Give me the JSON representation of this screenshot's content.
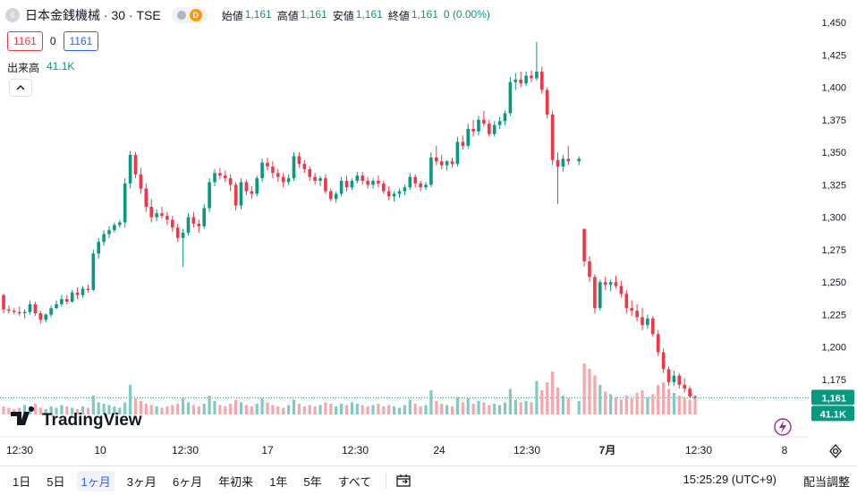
{
  "header": {
    "symbol_icon": "6",
    "symbol_title": "日本金銭機械 · 30 · TSE",
    "data_badge": "D",
    "open_label": "始値",
    "open_value": "1,161",
    "high_label": "高値",
    "high_value": "1,161",
    "low_label": "安値",
    "low_value": "1,161",
    "close_label": "終値",
    "close_value": "1,161",
    "change": "0 (0.00%)"
  },
  "quote": {
    "bid": "1161",
    "spread": "0",
    "ask": "1161"
  },
  "volume_legend": {
    "label": "出来高",
    "value": "41.1K"
  },
  "price_axis": {
    "ticks": [
      "1,450",
      "1,425",
      "1,400",
      "1,375",
      "1,350",
      "1,325",
      "1,300",
      "1,275",
      "1,250",
      "1,225",
      "1,200",
      "1,175"
    ],
    "last_price_label": "1,161",
    "last_volume_label": "41.1K"
  },
  "time_axis": {
    "ticks": [
      "12:30",
      "10",
      "12:30",
      "17",
      "12:30",
      "24",
      "12:30",
      "7月",
      "12:30",
      "8"
    ]
  },
  "logo": {
    "text": "TradingView"
  },
  "bottom_bar": {
    "ranges": [
      "1日",
      "5日",
      "1ヶ月",
      "3ヶ月",
      "6ヶ月",
      "年初来",
      "1年",
      "5年",
      "すべて"
    ],
    "active_range": "1ヶ月",
    "clock": "15:25:29 (UTC+9)",
    "adjust_label": "配当調整"
  },
  "colors": {
    "up": "#089981",
    "down": "#f23645",
    "vol_up": "#7fcbc1",
    "vol_down": "#f7a6ab",
    "accent": "#2962ff"
  },
  "chart_data": {
    "type": "candlestick",
    "title": "日本金銭機械 · 30 · TSE",
    "interval": "30",
    "y_ticks": [
      1175,
      1200,
      1225,
      1250,
      1275,
      1300,
      1325,
      1350,
      1375,
      1400,
      1425,
      1450
    ],
    "last_price": 1161,
    "x_ticks": [
      "12:30",
      "10",
      "12:30",
      "17",
      "12:30",
      "24",
      "12:30",
      "7月",
      "12:30",
      "8"
    ],
    "series": [
      {
        "name": "price",
        "values": [
          [
            1240,
            1241,
            1226,
            1229
          ],
          [
            1229,
            1232,
            1226,
            1228
          ],
          [
            1228,
            1230,
            1225,
            1227
          ],
          [
            1227,
            1231,
            1224,
            1226
          ],
          [
            1226,
            1229,
            1222,
            1227
          ],
          [
            1227,
            1236,
            1225,
            1233
          ],
          [
            1233,
            1235,
            1224,
            1226
          ],
          [
            1226,
            1228,
            1218,
            1221
          ],
          [
            1221,
            1226,
            1219,
            1225
          ],
          [
            1225,
            1232,
            1223,
            1230
          ],
          [
            1230,
            1236,
            1229,
            1233
          ],
          [
            1233,
            1240,
            1231,
            1237
          ],
          [
            1237,
            1240,
            1233,
            1235
          ],
          [
            1235,
            1244,
            1234,
            1242
          ],
          [
            1242,
            1246,
            1237,
            1240
          ],
          [
            1240,
            1247,
            1238,
            1245
          ],
          [
            1245,
            1248,
            1242,
            1244
          ],
          [
            1244,
            1275,
            1243,
            1272
          ],
          [
            1272,
            1284,
            1268,
            1281
          ],
          [
            1281,
            1290,
            1278,
            1287
          ],
          [
            1287,
            1293,
            1284,
            1290
          ],
          [
            1290,
            1296,
            1288,
            1294
          ],
          [
            1294,
            1298,
            1292,
            1296
          ],
          [
            1296,
            1330,
            1292,
            1326
          ],
          [
            1326,
            1351,
            1322,
            1348
          ],
          [
            1348,
            1350,
            1330,
            1333
          ],
          [
            1333,
            1338,
            1318,
            1322
          ],
          [
            1322,
            1326,
            1304,
            1308
          ],
          [
            1308,
            1314,
            1296,
            1300
          ],
          [
            1300,
            1306,
            1297,
            1303
          ],
          [
            1303,
            1308,
            1299,
            1301
          ],
          [
            1301,
            1304,
            1294,
            1298
          ],
          [
            1298,
            1301,
            1289,
            1292
          ],
          [
            1292,
            1295,
            1281,
            1284
          ],
          [
            1284,
            1291,
            1262,
            1288
          ],
          [
            1288,
            1303,
            1286,
            1300
          ],
          [
            1300,
            1304,
            1292,
            1295
          ],
          [
            1295,
            1298,
            1288,
            1293
          ],
          [
            1293,
            1310,
            1291,
            1307
          ],
          [
            1307,
            1330,
            1304,
            1327
          ],
          [
            1327,
            1337,
            1324,
            1334
          ],
          [
            1334,
            1338,
            1329,
            1332
          ],
          [
            1332,
            1336,
            1327,
            1330
          ],
          [
            1330,
            1333,
            1320,
            1325
          ],
          [
            1325,
            1327,
            1305,
            1309
          ],
          [
            1309,
            1330,
            1306,
            1327
          ],
          [
            1327,
            1329,
            1317,
            1320
          ],
          [
            1320,
            1324,
            1314,
            1318
          ],
          [
            1318,
            1332,
            1316,
            1330
          ],
          [
            1330,
            1345,
            1327,
            1342
          ],
          [
            1342,
            1346,
            1336,
            1339
          ],
          [
            1339,
            1343,
            1330,
            1334
          ],
          [
            1334,
            1337,
            1327,
            1331
          ],
          [
            1331,
            1334,
            1323,
            1327
          ],
          [
            1327,
            1333,
            1325,
            1330
          ],
          [
            1330,
            1350,
            1328,
            1347
          ],
          [
            1347,
            1350,
            1338,
            1341
          ],
          [
            1341,
            1344,
            1334,
            1337
          ],
          [
            1337,
            1339,
            1328,
            1331
          ],
          [
            1331,
            1334,
            1325,
            1328
          ],
          [
            1328,
            1332,
            1324,
            1330
          ],
          [
            1330,
            1333,
            1318,
            1320
          ],
          [
            1320,
            1322,
            1312,
            1314
          ],
          [
            1314,
            1320,
            1311,
            1318
          ],
          [
            1318,
            1331,
            1316,
            1328
          ],
          [
            1328,
            1332,
            1320,
            1323
          ],
          [
            1323,
            1330,
            1321,
            1328
          ],
          [
            1328,
            1335,
            1326,
            1332
          ],
          [
            1332,
            1335,
            1325,
            1328
          ],
          [
            1328,
            1331,
            1322,
            1325
          ],
          [
            1325,
            1330,
            1322,
            1328
          ],
          [
            1328,
            1332,
            1323,
            1326
          ],
          [
            1326,
            1328,
            1318,
            1320
          ],
          [
            1320,
            1324,
            1313,
            1316
          ],
          [
            1316,
            1320,
            1312,
            1318
          ],
          [
            1318,
            1322,
            1315,
            1320
          ],
          [
            1320,
            1325,
            1317,
            1323
          ],
          [
            1323,
            1334,
            1321,
            1331
          ],
          [
            1331,
            1333,
            1323,
            1326
          ],
          [
            1326,
            1328,
            1320,
            1323
          ],
          [
            1323,
            1327,
            1321,
            1325
          ],
          [
            1325,
            1350,
            1323,
            1346
          ],
          [
            1346,
            1355,
            1340,
            1343
          ],
          [
            1343,
            1348,
            1337,
            1340
          ],
          [
            1340,
            1344,
            1336,
            1343
          ],
          [
            1343,
            1346,
            1338,
            1341
          ],
          [
            1341,
            1362,
            1339,
            1358
          ],
          [
            1358,
            1363,
            1352,
            1355
          ],
          [
            1355,
            1372,
            1353,
            1368
          ],
          [
            1368,
            1375,
            1362,
            1366
          ],
          [
            1366,
            1378,
            1363,
            1375
          ],
          [
            1375,
            1382,
            1370,
            1372
          ],
          [
            1372,
            1375,
            1362,
            1364
          ],
          [
            1364,
            1374,
            1362,
            1371
          ],
          [
            1371,
            1377,
            1368,
            1374
          ],
          [
            1374,
            1382,
            1371,
            1380
          ],
          [
            1380,
            1408,
            1378,
            1404
          ],
          [
            1404,
            1411,
            1398,
            1406
          ],
          [
            1406,
            1412,
            1400,
            1403
          ],
          [
            1403,
            1412,
            1401,
            1409
          ],
          [
            1409,
            1413,
            1404,
            1407
          ],
          [
            1407,
            1435,
            1405,
            1412
          ],
          [
            1412,
            1416,
            1395,
            1398
          ],
          [
            1398,
            1400,
            1376,
            1379
          ],
          [
            1379,
            1382,
            1340,
            1344
          ],
          [
            1344,
            1350,
            1310,
            1339
          ],
          [
            1339,
            1348,
            1335,
            1345
          ],
          [
            1345,
            1355,
            1340,
            1343
          ],
          [
            1343,
            1347,
            1340,
            1345
          ],
          [
            1291,
            1291,
            1262,
            1266
          ],
          [
            1266,
            1270,
            1250,
            1254
          ],
          [
            1254,
            1256,
            1226,
            1230
          ],
          [
            1230,
            1252,
            1228,
            1250
          ],
          [
            1250,
            1254,
            1244,
            1248
          ],
          [
            1248,
            1252,
            1243,
            1250
          ],
          [
            1250,
            1255,
            1245,
            1247
          ],
          [
            1247,
            1251,
            1238,
            1241
          ],
          [
            1241,
            1244,
            1226,
            1230
          ],
          [
            1230,
            1236,
            1224,
            1228
          ],
          [
            1228,
            1233,
            1220,
            1223
          ],
          [
            1223,
            1230,
            1213,
            1217
          ],
          [
            1217,
            1225,
            1214,
            1222
          ],
          [
            1222,
            1224,
            1208,
            1210
          ],
          [
            1210,
            1213,
            1193,
            1196
          ],
          [
            1196,
            1199,
            1180,
            1183
          ],
          [
            1183,
            1185,
            1170,
            1173
          ],
          [
            1173,
            1182,
            1170,
            1178
          ],
          [
            1178,
            1180,
            1168,
            1171
          ],
          [
            1171,
            1176,
            1165,
            1168
          ],
          [
            1168,
            1170,
            1161,
            1162
          ],
          [
            1162,
            1163,
            1160,
            1161
          ]
        ]
      },
      {
        "name": "volume",
        "values": [
          6,
          5,
          4,
          5,
          7,
          6,
          8,
          5,
          4,
          6,
          5,
          7,
          6,
          5,
          4,
          6,
          5,
          14,
          9,
          8,
          7,
          6,
          5,
          9,
          22,
          12,
          10,
          8,
          7,
          6,
          5,
          6,
          7,
          8,
          12,
          9,
          7,
          6,
          8,
          14,
          10,
          7,
          6,
          8,
          11,
          9,
          7,
          6,
          8,
          12,
          9,
          7,
          6,
          5,
          7,
          11,
          8,
          6,
          7,
          6,
          7,
          9,
          8,
          6,
          8,
          7,
          9,
          8,
          7,
          6,
          7,
          8,
          6,
          7,
          6,
          5,
          7,
          11,
          8,
          6,
          7,
          18,
          10,
          8,
          7,
          6,
          13,
          9,
          12,
          8,
          10,
          9,
          7,
          8,
          7,
          9,
          19,
          11,
          9,
          10,
          9,
          25,
          18,
          24,
          32,
          20,
          14,
          12,
          10,
          38,
          34,
          29,
          22,
          17,
          15,
          13,
          11,
          14,
          12,
          16,
          18,
          13,
          15,
          22,
          24,
          19,
          16,
          14,
          13,
          11,
          12
        ]
      }
    ]
  }
}
